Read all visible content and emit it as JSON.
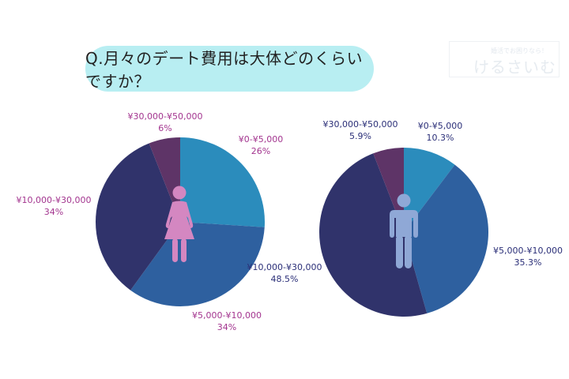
{
  "title": "Q.月々のデート費用は大体どのくらいですか？",
  "watermark": {
    "top": "婚活でお困りなら！",
    "main": "けるさいむ"
  },
  "colors": {
    "title_bg": "#b8eef2",
    "slice_0_5000": "#2b8cbc",
    "slice_5000_10000": "#2e609f",
    "slice_10000_30000": "#30336b",
    "slice_30000_50000": "#5e3467",
    "female_icon": "#d487c1",
    "male_icon": "#8fa8d6",
    "female_label": "#a3358f",
    "male_label": "#2b2f78"
  },
  "chart_data": [
    {
      "type": "pie",
      "title": "Female",
      "icon": "female-figure-icon",
      "categories": [
        "¥0-¥5,000",
        "¥5,000-¥10,000",
        "¥10,000-¥30,000",
        "¥30,000-¥50,000"
      ],
      "values": [
        26,
        34,
        34,
        6
      ],
      "labels": [
        {
          "range": "¥0-¥5,000",
          "pct": "26%"
        },
        {
          "range": "¥5,000-¥10,000",
          "pct": "34%"
        },
        {
          "range": "¥10,000-¥30,000",
          "pct": "34%"
        },
        {
          "range": "¥30,000-¥50,000",
          "pct": "6%"
        }
      ]
    },
    {
      "type": "pie",
      "title": "Male",
      "icon": "male-figure-icon",
      "categories": [
        "¥0-¥5,000",
        "¥5,000-¥10,000",
        "¥10,000-¥30,000",
        "¥30,000-¥50,000"
      ],
      "values": [
        10.3,
        35.3,
        48.5,
        5.9
      ],
      "labels": [
        {
          "range": "¥0-¥5,000",
          "pct": "10.3%"
        },
        {
          "range": "¥5,000-¥10,000",
          "pct": "35.3%"
        },
        {
          "range": "¥10,000-¥30,000",
          "pct": "48.5%"
        },
        {
          "range": "¥30,000-¥50,000",
          "pct": "5.9%"
        }
      ]
    }
  ]
}
